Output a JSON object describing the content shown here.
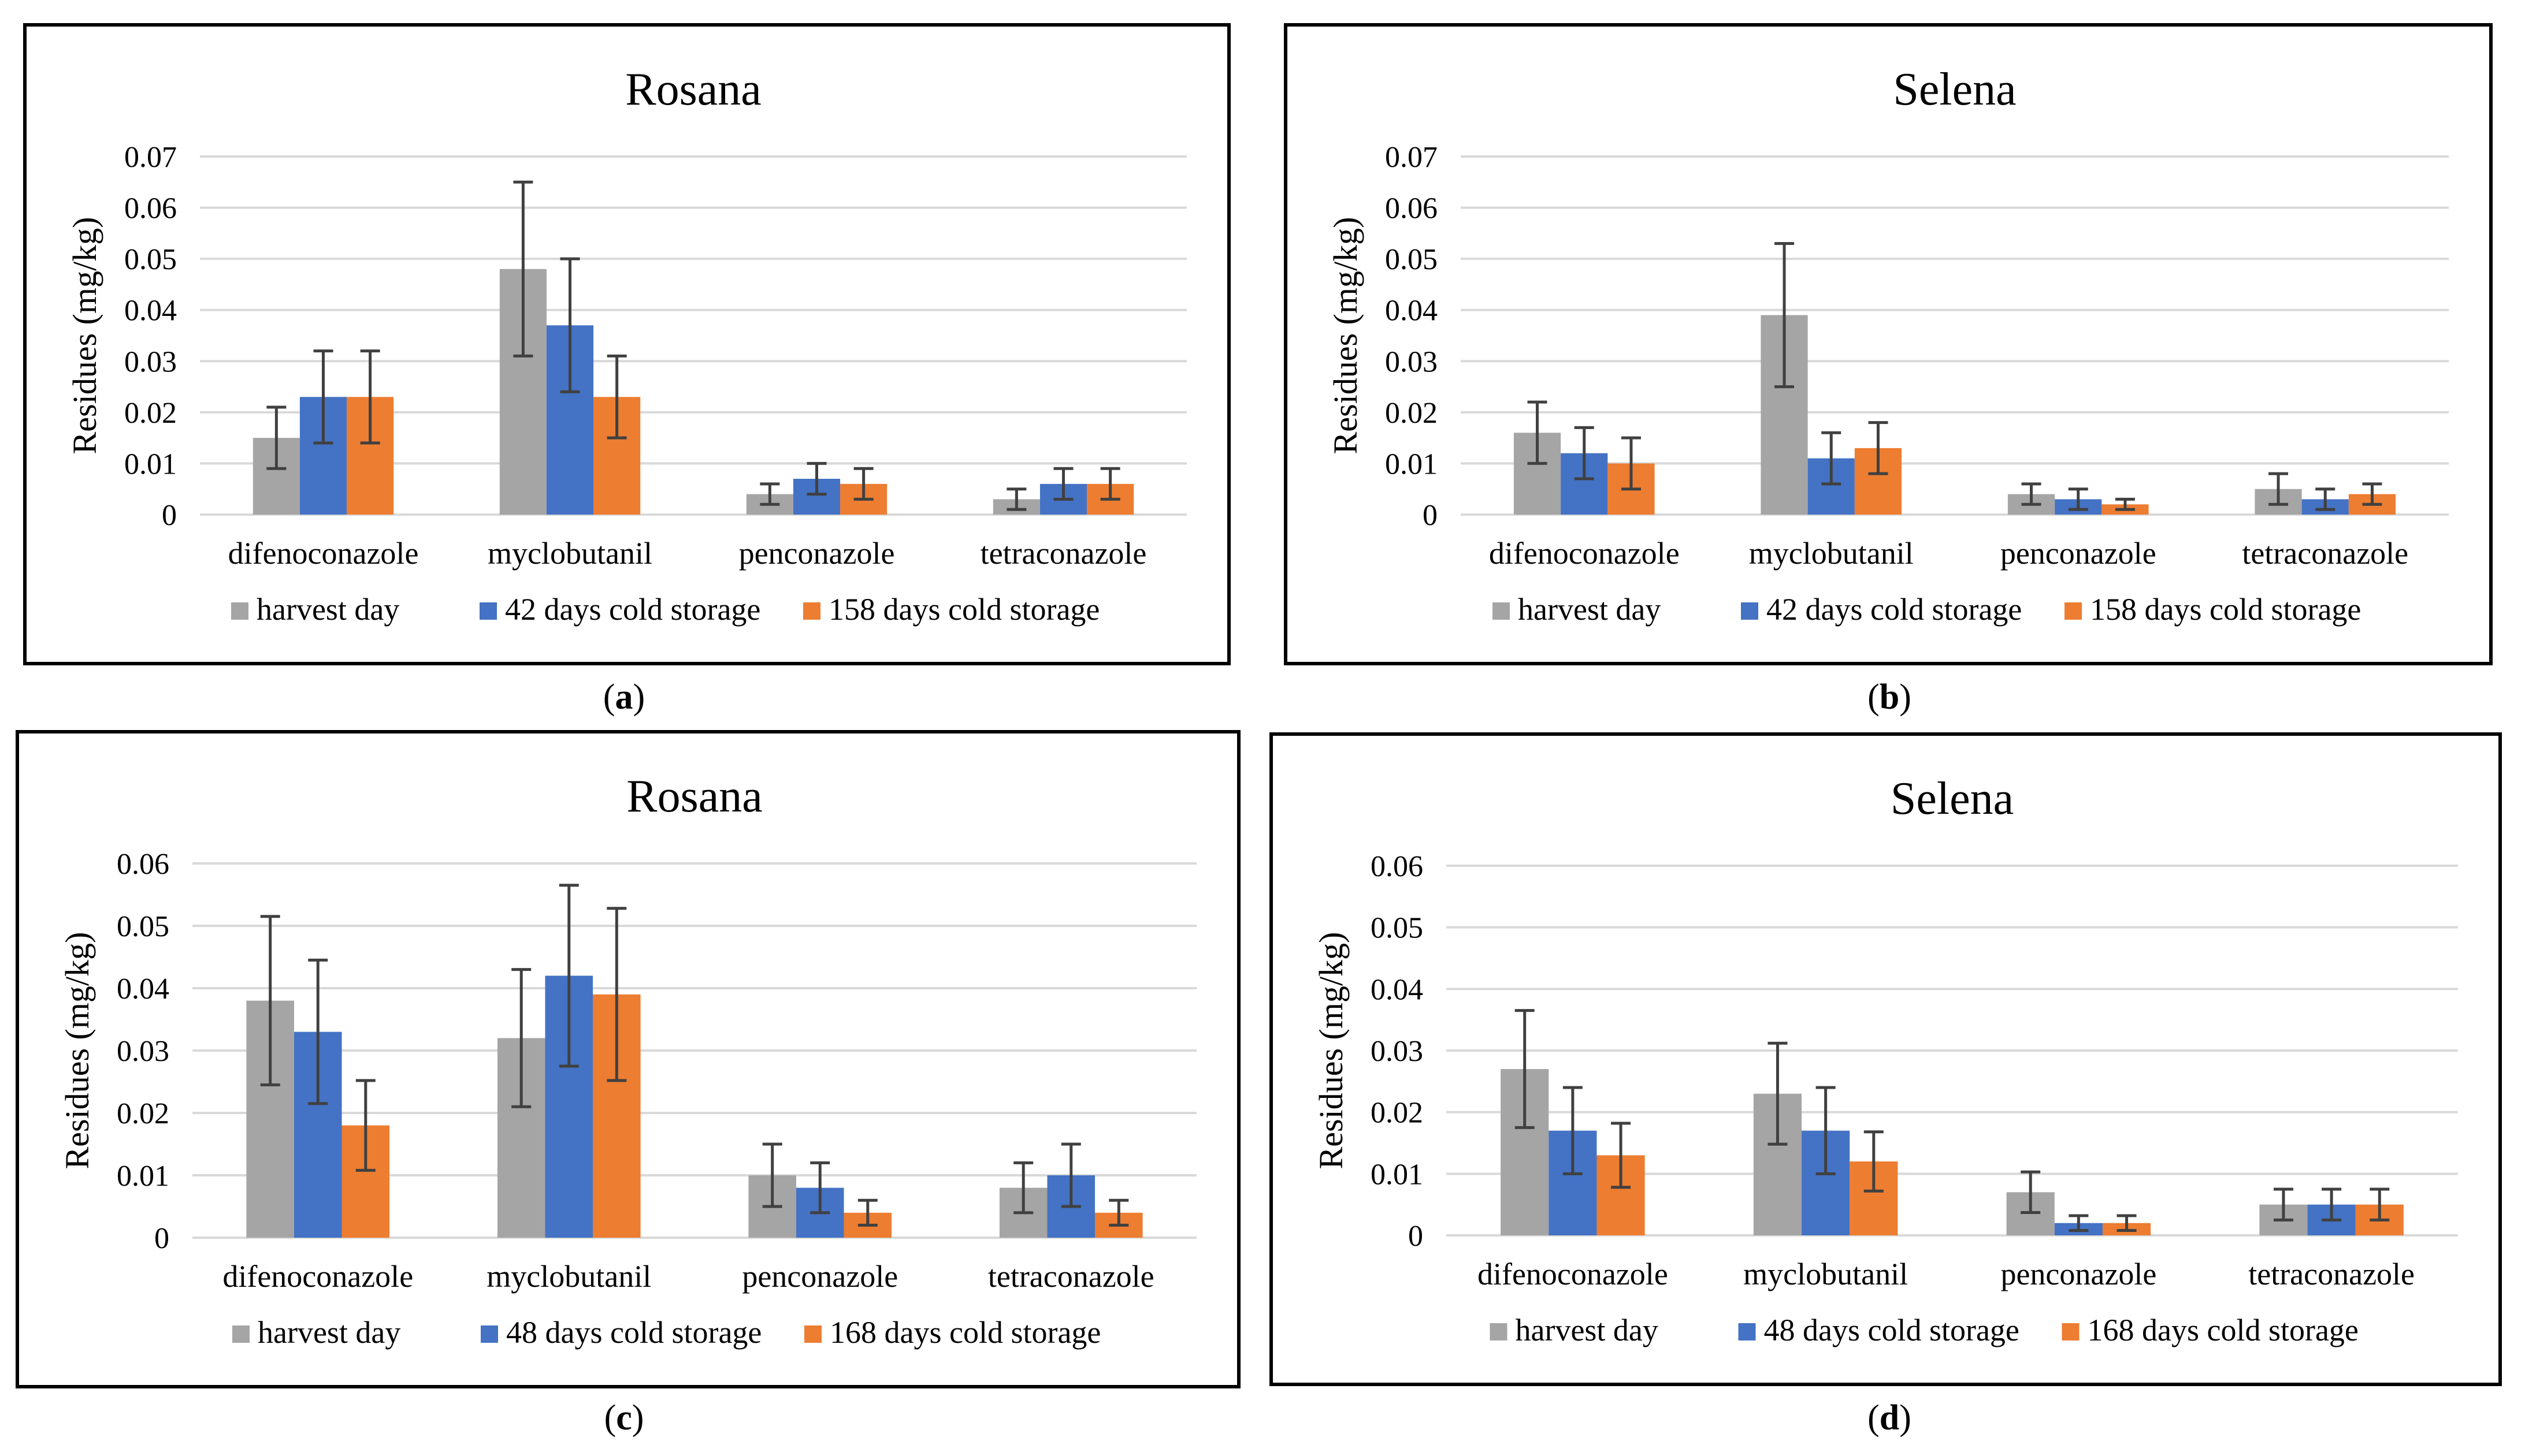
{
  "chart_data": [
    {
      "type": "bar",
      "panel": "a",
      "title": "Rosana",
      "xlabel": "",
      "ylabel": "Residues (mg/kg)",
      "ylim": [
        0,
        0.07
      ],
      "yticks": [
        "0",
        "0.01",
        "0.02",
        "0.03",
        "0.04",
        "0.05",
        "0.06",
        "0.07"
      ],
      "grid": true,
      "legend_position": "bottom",
      "categories": [
        "difenoconazole",
        "myclobutanil",
        "penconazole",
        "tetraconazole"
      ],
      "series": [
        {
          "name": "harvest day",
          "color": "#a5a5a5",
          "values": [
            0.015,
            0.048,
            0.004,
            0.003
          ],
          "errors": [
            0.006,
            0.017,
            0.002,
            0.002
          ]
        },
        {
          "name": "42 days cold storage",
          "color": "#4472c4",
          "values": [
            0.023,
            0.037,
            0.007,
            0.006
          ],
          "errors": [
            0.009,
            0.013,
            0.003,
            0.003
          ]
        },
        {
          "name": "158 days cold storage",
          "color": "#ed7d31",
          "values": [
            0.023,
            0.023,
            0.006,
            0.006
          ],
          "errors": [
            0.009,
            0.008,
            0.003,
            0.003
          ]
        }
      ]
    },
    {
      "type": "bar",
      "panel": "b",
      "title": "Selena",
      "xlabel": "",
      "ylabel": "Residues (mg/kg)",
      "ylim": [
        0,
        0.07
      ],
      "yticks": [
        "0",
        "0.01",
        "0.02",
        "0.03",
        "0.04",
        "0.05",
        "0.06",
        "0.07"
      ],
      "grid": true,
      "legend_position": "bottom",
      "categories": [
        "difenoconazole",
        "myclobutanil",
        "penconazole",
        "tetraconazole"
      ],
      "series": [
        {
          "name": "harvest day",
          "color": "#a5a5a5",
          "values": [
            0.016,
            0.039,
            0.004,
            0.005
          ],
          "errors": [
            0.006,
            0.014,
            0.002,
            0.003
          ]
        },
        {
          "name": "42 days cold storage",
          "color": "#4472c4",
          "values": [
            0.012,
            0.011,
            0.003,
            0.003
          ],
          "errors": [
            0.005,
            0.005,
            0.002,
            0.002
          ]
        },
        {
          "name": "158 days cold storage",
          "color": "#ed7d31",
          "values": [
            0.01,
            0.013,
            0.002,
            0.004
          ],
          "errors": [
            0.005,
            0.005,
            0.001,
            0.002
          ]
        }
      ]
    },
    {
      "type": "bar",
      "panel": "c",
      "title": "Rosana",
      "xlabel": "",
      "ylabel": "Residues (mg/kg)",
      "ylim": [
        0,
        0.06
      ],
      "yticks": [
        "0",
        "0.01",
        "0.02",
        "0.03",
        "0.04",
        "0.05",
        "0.06"
      ],
      "grid": true,
      "legend_position": "bottom",
      "categories": [
        "difenoconazole",
        "myclobutanil",
        "penconazole",
        "tetraconazole"
      ],
      "series": [
        {
          "name": "harvest day",
          "color": "#a5a5a5",
          "values": [
            0.038,
            0.032,
            0.01,
            0.008
          ],
          "errors": [
            0.0135,
            0.011,
            0.005,
            0.004
          ]
        },
        {
          "name": "48 days cold storage",
          "color": "#4472c4",
          "values": [
            0.033,
            0.042,
            0.008,
            0.01
          ],
          "errors": [
            0.0115,
            0.0145,
            0.004,
            0.005
          ]
        },
        {
          "name": "168 days cold storage",
          "color": "#ed7d31",
          "values": [
            0.018,
            0.039,
            0.004,
            0.004
          ],
          "errors": [
            0.0072,
            0.0138,
            0.002,
            0.002
          ]
        }
      ]
    },
    {
      "type": "bar",
      "panel": "d",
      "title": "Selena",
      "xlabel": "",
      "ylabel": "Residues (mg/kg)",
      "ylim": [
        0,
        0.06
      ],
      "yticks": [
        "0",
        "0.01",
        "0.02",
        "0.03",
        "0.04",
        "0.05",
        "0.06"
      ],
      "grid": true,
      "legend_position": "bottom",
      "categories": [
        "difenoconazole",
        "myclobutanil",
        "penconazole",
        "tetraconazole"
      ],
      "series": [
        {
          "name": "harvest day",
          "color": "#a5a5a5",
          "values": [
            0.027,
            0.023,
            0.007,
            0.005
          ],
          "errors": [
            0.0095,
            0.0082,
            0.0033,
            0.0025
          ]
        },
        {
          "name": "48 days cold storage",
          "color": "#4472c4",
          "values": [
            0.017,
            0.017,
            0.002,
            0.005
          ],
          "errors": [
            0.007,
            0.007,
            0.0012,
            0.0025
          ]
        },
        {
          "name": "168 days cold storage",
          "color": "#ed7d31",
          "values": [
            0.013,
            0.012,
            0.002,
            0.005
          ],
          "errors": [
            0.0052,
            0.0048,
            0.0012,
            0.0025
          ]
        }
      ]
    }
  ],
  "captions": {
    "a": "a",
    "b": "b",
    "c": "c",
    "d": "d"
  }
}
